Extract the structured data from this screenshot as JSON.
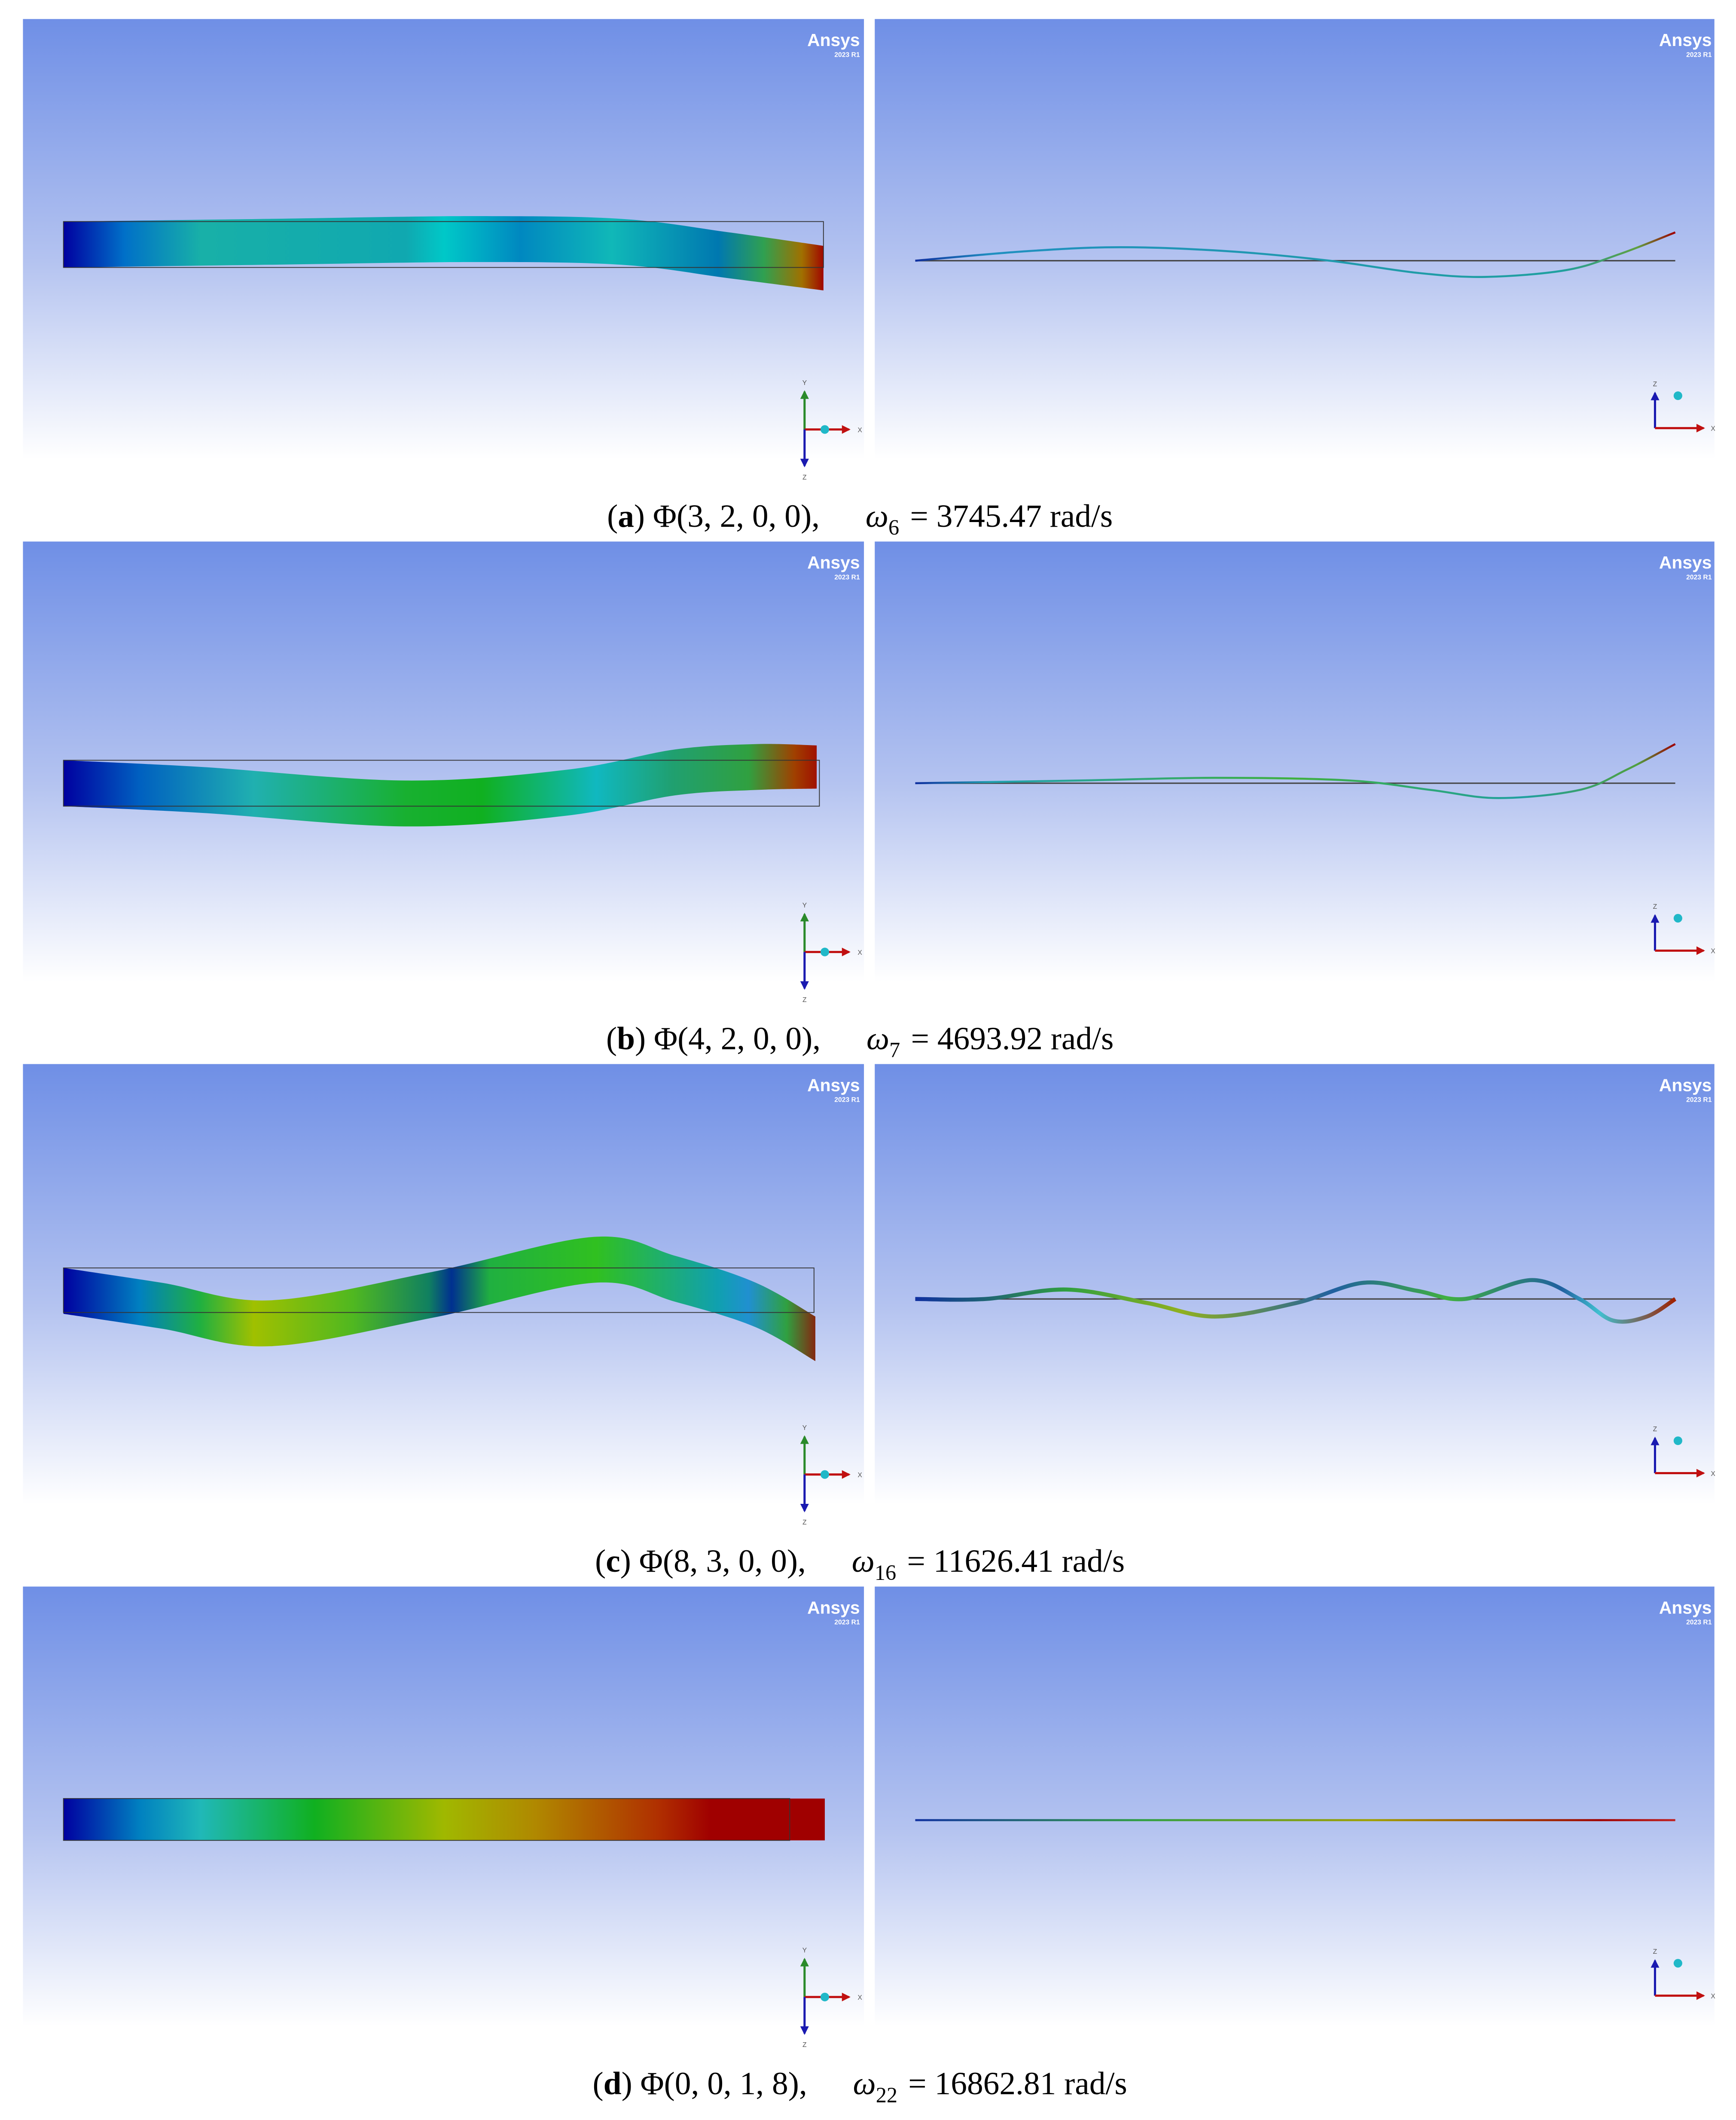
{
  "logo": {
    "brand": "Ansys",
    "version": "2023 R1"
  },
  "triad": {
    "x": "X",
    "y": "Y",
    "z": "Z"
  },
  "panels": [
    {
      "caption": [
        "(",
        "a",
        ") Φ(3, 2, 0, 0),",
        "ω",
        "6",
        "= 3745.47 rad/s"
      ]
    },
    {
      "caption": [
        "(",
        "b",
        ") Φ(4, 2, 0, 0),",
        "ω",
        "7",
        "= 4693.92 rad/s"
      ]
    },
    {
      "caption": [
        "(",
        "c",
        ") Φ(8, 3, 0, 0),",
        "ω",
        "16",
        "= 11626.41 rad/s"
      ]
    },
    {
      "caption": [
        "(",
        "d",
        ") Φ(0, 0, 1, 8),",
        "ω",
        "22",
        "= 16862.81 rad/s"
      ]
    }
  ]
}
